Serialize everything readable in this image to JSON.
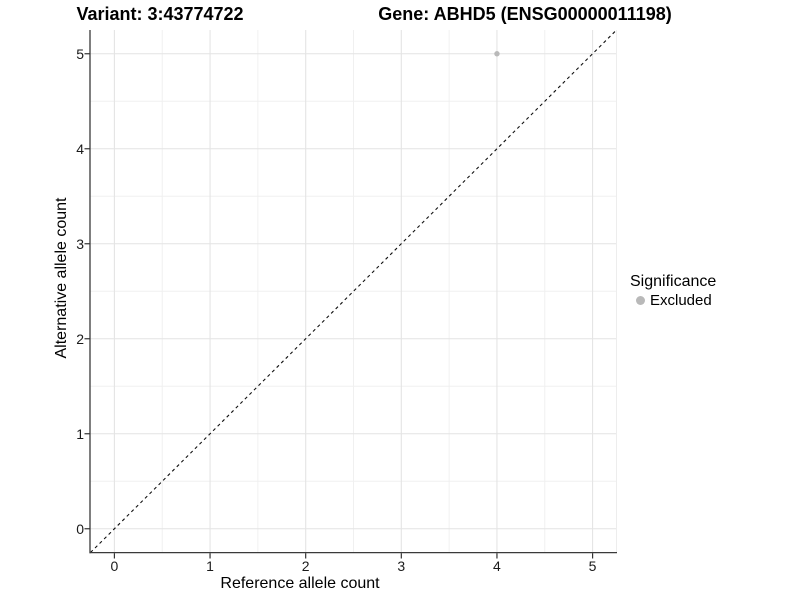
{
  "figure": {
    "title_left": "Variant: 3:43774722",
    "title_right": "Gene: ABHD5 (ENSG00000011198)"
  },
  "chart_data": {
    "type": "scatter",
    "title_left": "Variant: 3:43774722",
    "title_right": "Gene: ABHD5 (ENSG00000011198)",
    "xlabel": "Reference allele count",
    "ylabel": "Alternative allele count",
    "xlim": [
      -0.25,
      5.25
    ],
    "ylim": [
      -0.25,
      5.25
    ],
    "x_ticks": [
      0,
      1,
      2,
      3,
      4,
      5
    ],
    "y_ticks": [
      0,
      1,
      2,
      3,
      4,
      5
    ],
    "x_minor_ticks": [
      0.5,
      1.5,
      2.5,
      3.5,
      4.5
    ],
    "y_minor_ticks": [
      0.5,
      1.5,
      2.5,
      3.5,
      4.5
    ],
    "grid": true,
    "series": [
      {
        "name": "Excluded",
        "color": "#b9b9b9",
        "points": [
          {
            "x": 4,
            "y": 5
          }
        ]
      }
    ],
    "reference_line": {
      "type": "identity",
      "style": "dashed",
      "from": [
        -0.25,
        -0.25
      ],
      "to": [
        5.25,
        5.25
      ],
      "color": "#111111"
    },
    "legend": {
      "title": "Significance",
      "position": "right",
      "items": [
        {
          "label": "Excluded",
          "color": "#b9b9b9"
        }
      ]
    }
  },
  "colors": {
    "background": "#ffffff",
    "grid_major": "#e4e4e4",
    "grid_minor": "#f0f0f0",
    "panel_edge": "#ededed",
    "axis_line": "#3a3a3a",
    "tick_mark": "#333333",
    "point": "#b9b9b9"
  }
}
